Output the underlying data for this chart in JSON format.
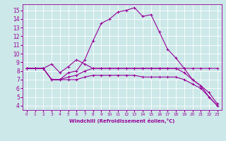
{
  "title": "",
  "xlabel": "Windchill (Refroidissement éolien,°C)",
  "ylabel": "",
  "xlim": [
    -0.5,
    23.5
  ],
  "ylim": [
    3.5,
    15.7
  ],
  "xticks": [
    0,
    1,
    2,
    3,
    4,
    5,
    6,
    7,
    8,
    9,
    10,
    11,
    12,
    13,
    14,
    15,
    16,
    17,
    18,
    19,
    20,
    21,
    22,
    23
  ],
  "yticks": [
    4,
    5,
    6,
    7,
    8,
    9,
    10,
    11,
    12,
    13,
    14,
    15
  ],
  "background_color": "#cce8e8",
  "grid_color": "#aacccc",
  "line_color": "#990099",
  "series": [
    {
      "x": [
        0,
        1,
        2,
        3,
        4,
        5,
        6,
        7,
        8,
        9,
        10,
        11,
        12,
        13,
        14,
        15,
        16,
        17,
        18,
        19,
        20,
        21,
        22,
        23
      ],
      "y": [
        8.3,
        8.3,
        8.3,
        8.8,
        7.8,
        8.5,
        9.3,
        8.8,
        8.3,
        8.3,
        8.3,
        8.3,
        8.3,
        8.3,
        8.3,
        8.3,
        8.3,
        8.3,
        8.3,
        8.3,
        8.3,
        8.3,
        8.3,
        8.3
      ]
    },
    {
      "x": [
        0,
        1,
        2,
        3,
        4,
        5,
        6,
        7,
        8,
        9,
        10,
        11,
        12,
        13,
        14,
        15,
        16,
        17,
        18,
        19,
        20,
        21,
        22,
        23
      ],
      "y": [
        8.3,
        8.3,
        8.3,
        7.0,
        7.0,
        7.8,
        8.0,
        9.3,
        11.5,
        13.5,
        14.0,
        14.8,
        15.0,
        15.3,
        14.3,
        14.5,
        12.5,
        10.5,
        9.5,
        8.3,
        7.0,
        6.3,
        5.0,
        4.0
      ]
    },
    {
      "x": [
        0,
        1,
        2,
        3,
        4,
        5,
        6,
        7,
        8,
        9,
        10,
        11,
        12,
        13,
        14,
        15,
        16,
        17,
        18,
        19,
        20,
        21,
        22,
        23
      ],
      "y": [
        8.3,
        8.3,
        8.3,
        7.0,
        7.0,
        7.3,
        7.5,
        8.0,
        8.3,
        8.3,
        8.3,
        8.3,
        8.3,
        8.3,
        8.3,
        8.3,
        8.3,
        8.3,
        8.3,
        7.8,
        7.0,
        6.3,
        5.5,
        4.2
      ]
    },
    {
      "x": [
        0,
        1,
        2,
        3,
        4,
        5,
        6,
        7,
        8,
        9,
        10,
        11,
        12,
        13,
        14,
        15,
        16,
        17,
        18,
        19,
        20,
        21,
        22,
        23
      ],
      "y": [
        8.3,
        8.3,
        8.3,
        7.0,
        7.0,
        7.0,
        7.0,
        7.3,
        7.5,
        7.5,
        7.5,
        7.5,
        7.5,
        7.5,
        7.3,
        7.3,
        7.3,
        7.3,
        7.3,
        7.0,
        6.5,
        6.0,
        5.0,
        4.0
      ]
    }
  ]
}
